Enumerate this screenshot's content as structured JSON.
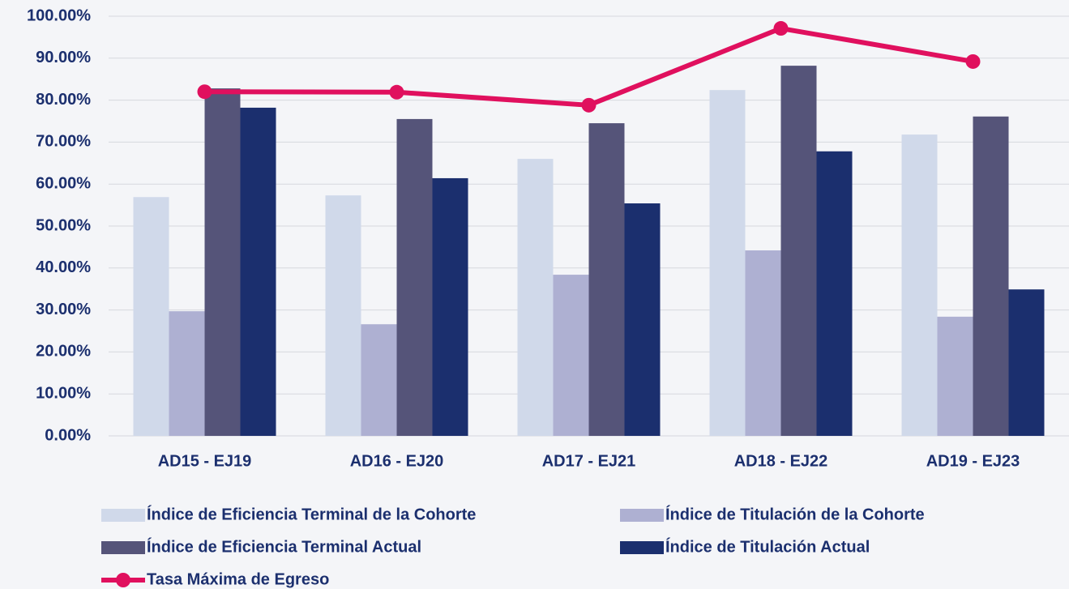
{
  "chart_data": {
    "type": "bar",
    "categories": [
      "AD15 - EJ19",
      "AD16 - EJ20",
      "AD17 - EJ21",
      "AD18 - EJ22",
      "AD19 - EJ23"
    ],
    "series": [
      {
        "name": "Índice de Eficiencia Terminal de la Cohorte",
        "color": "#d0d9ea",
        "values": [
          56.9,
          57.3,
          66.0,
          82.4,
          71.8
        ]
      },
      {
        "name": "Índice de Titulación de la Cohorte",
        "color": "#aeb0d2",
        "values": [
          29.7,
          26.6,
          38.4,
          44.2,
          28.4
        ]
      },
      {
        "name": "Índice de Eficiencia Terminal Actual",
        "color": "#555479",
        "values": [
          82.8,
          75.5,
          74.5,
          88.2,
          76.1
        ]
      },
      {
        "name": "Índice de Titulación Actual",
        "color": "#1b2f6e",
        "values": [
          78.2,
          61.4,
          55.4,
          67.8,
          34.9
        ]
      },
      {
        "name": "Tasa Máxima de Egreso",
        "color": "#e0105e",
        "type": "line",
        "values": [
          82.0,
          81.9,
          78.8,
          97.1,
          89.2
        ]
      }
    ],
    "ylim": [
      0,
      100
    ],
    "yticks": [
      {
        "value": 0,
        "label": "0.00%"
      },
      {
        "value": 10,
        "label": "10.00%"
      },
      {
        "value": 20,
        "label": "20.00%"
      },
      {
        "value": 30,
        "label": "30.00%"
      },
      {
        "value": 40,
        "label": "40.00%"
      },
      {
        "value": 50,
        "label": "50.00%"
      },
      {
        "value": 60,
        "label": "60.00%"
      },
      {
        "value": 70,
        "label": "70.00%"
      },
      {
        "value": 80,
        "label": "80.00%"
      },
      {
        "value": 90,
        "label": "90.00%"
      },
      {
        "value": 100,
        "label": "100.00%"
      }
    ],
    "grid": true
  }
}
